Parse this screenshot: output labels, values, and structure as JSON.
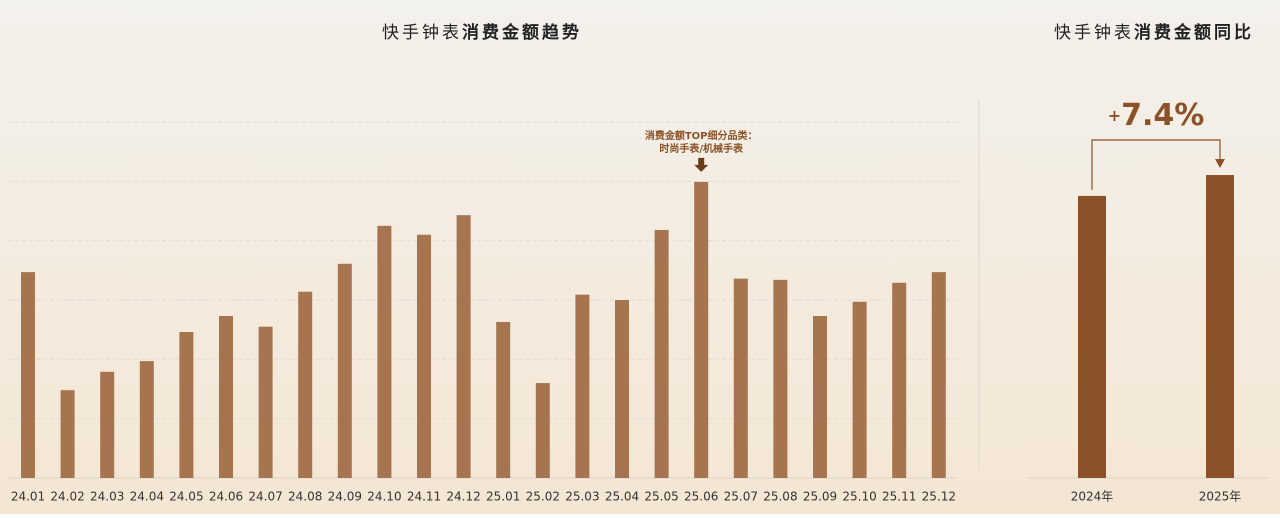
{
  "charts": [
    {
      "type": "bar",
      "title_light": "快手钟表",
      "title_bold": "消费金额趋势",
      "categories": [
        "24.01",
        "24.02",
        "24.03",
        "24.04",
        "24.05",
        "24.06",
        "24.07",
        "24.08",
        "24.09",
        "24.10",
        "24.11",
        "24.12",
        "25.01",
        "25.02",
        "25.03",
        "25.04",
        "25.05",
        "25.06",
        "25.07",
        "25.08",
        "25.09",
        "25.10",
        "25.11",
        "25.12"
      ],
      "values": [
        3.47,
        1.48,
        1.79,
        1.97,
        2.46,
        2.73,
        2.55,
        3.14,
        3.61,
        4.25,
        4.1,
        4.43,
        2.63,
        1.6,
        3.09,
        3.0,
        4.18,
        4.99,
        3.36,
        3.34,
        2.73,
        2.97,
        3.29,
        3.47
      ],
      "color": "#a67550",
      "ylim": [
        0,
        6
      ],
      "grid": true,
      "annotation": {
        "category": "25.06",
        "lines": [
          "消费金额TOP细分品类：",
          "时尚手表/机械手表"
        ]
      }
    },
    {
      "type": "bar",
      "title_light": "快手钟表",
      "title_bold": "消费金额同比",
      "categories": [
        "2024年",
        "2025年"
      ],
      "values": [
        100,
        107.4
      ],
      "color": "#8b5229",
      "ylim": [
        0,
        134
      ],
      "change": {
        "sign": "+",
        "text": "7.4%"
      }
    }
  ]
}
